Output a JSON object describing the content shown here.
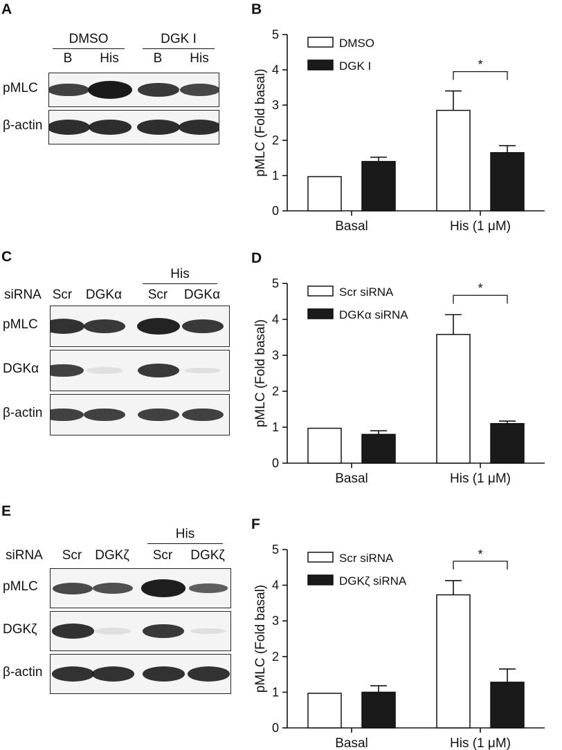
{
  "figure": {
    "panels": [
      {
        "letter": "A",
        "type": "blot",
        "header_groups": [
          {
            "label": "DMSO",
            "lanes": [
              0,
              1
            ]
          },
          {
            "label": "DGK I",
            "lanes": [
              2,
              3
            ]
          }
        ],
        "row_label": "",
        "lane_labels": [
          "B",
          "His",
          "B",
          "His"
        ],
        "strips": [
          {
            "label": "pMLC",
            "bands": [
              0.6,
              1.0,
              0.7,
              0.55
            ]
          },
          {
            "label": "β-actin",
            "bands": [
              0.8,
              0.8,
              0.8,
              0.8
            ]
          }
        ]
      },
      {
        "letter": "C",
        "type": "blot",
        "header_groups": [
          {
            "label": "His",
            "lanes": [
              2,
              3
            ]
          }
        ],
        "row_label": "siRNA",
        "lane_labels": [
          "Scr",
          "DGKα",
          "Scr",
          "DGKα"
        ],
        "strips": [
          {
            "label": "pMLC",
            "bands": [
              0.75,
              0.7,
              0.9,
              0.7
            ]
          },
          {
            "label": "DGKα",
            "bands": [
              0.6,
              0.08,
              0.7,
              0.05
            ]
          },
          {
            "label": "β-actin",
            "bands": [
              0.6,
              0.6,
              0.6,
              0.6
            ]
          }
        ]
      },
      {
        "letter": "E",
        "type": "blot",
        "header_groups": [
          {
            "label": "His",
            "lanes": [
              2,
              3
            ]
          }
        ],
        "row_label": "siRNA",
        "lane_labels": [
          "Scr",
          "DGKζ",
          "Scr",
          "DGKζ"
        ],
        "strips": [
          {
            "label": "pMLC",
            "bands": [
              0.5,
              0.45,
              0.95,
              0.3
            ]
          },
          {
            "label": "DGKζ",
            "bands": [
              0.75,
              0.08,
              0.7,
              0.05
            ]
          },
          {
            "label": "β-actin",
            "bands": [
              0.75,
              0.75,
              0.75,
              0.75
            ]
          }
        ]
      }
    ]
  },
  "chart_data": [
    {
      "letter": "B",
      "type": "bar",
      "categories": [
        "Basal",
        "His (1 μM)"
      ],
      "ylabel": "pMLC (Fold basal)",
      "ylim": [
        0,
        5
      ],
      "yticks": [
        "0",
        "1",
        "2",
        "3",
        "4",
        "5"
      ],
      "series": [
        {
          "name": "DMSO",
          "color": "#ffffff",
          "values": [
            0.97,
            2.85
          ],
          "errors": [
            0,
            0.55
          ]
        },
        {
          "name": "DGK I",
          "color": "#1a1a1a",
          "values": [
            1.4,
            1.65
          ],
          "errors": [
            0.12,
            0.2
          ]
        }
      ],
      "significance": {
        "category": 1,
        "label": "*"
      }
    },
    {
      "letter": "D",
      "type": "bar",
      "categories": [
        "Basal",
        "His (1 μM)"
      ],
      "ylabel": "pMLC (Fold basal)",
      "ylim": [
        0,
        5
      ],
      "yticks": [
        "0",
        "1",
        "2",
        "3",
        "4",
        "5"
      ],
      "series": [
        {
          "name": "Scr siRNA",
          "color": "#ffffff",
          "values": [
            0.97,
            3.58
          ],
          "errors": [
            0,
            0.55
          ]
        },
        {
          "name": "DGKα siRNA",
          "color": "#1a1a1a",
          "values": [
            0.8,
            1.1
          ],
          "errors": [
            0.1,
            0.07
          ]
        }
      ],
      "significance": {
        "category": 1,
        "label": "*"
      }
    },
    {
      "letter": "F",
      "type": "bar",
      "categories": [
        "Basal",
        "His (1 μM)"
      ],
      "ylabel": "pMLC (Fold basal)",
      "ylim": [
        0,
        5
      ],
      "yticks": [
        "0",
        "1",
        "2",
        "3",
        "4",
        "5"
      ],
      "series": [
        {
          "name": "Scr siRNA",
          "color": "#ffffff",
          "values": [
            0.97,
            3.73
          ],
          "errors": [
            0,
            0.4
          ]
        },
        {
          "name": "DGKζ siRNA",
          "color": "#1a1a1a",
          "values": [
            1.0,
            1.28
          ],
          "errors": [
            0.18,
            0.37
          ]
        }
      ],
      "significance": {
        "category": 1,
        "label": "*"
      }
    }
  ]
}
